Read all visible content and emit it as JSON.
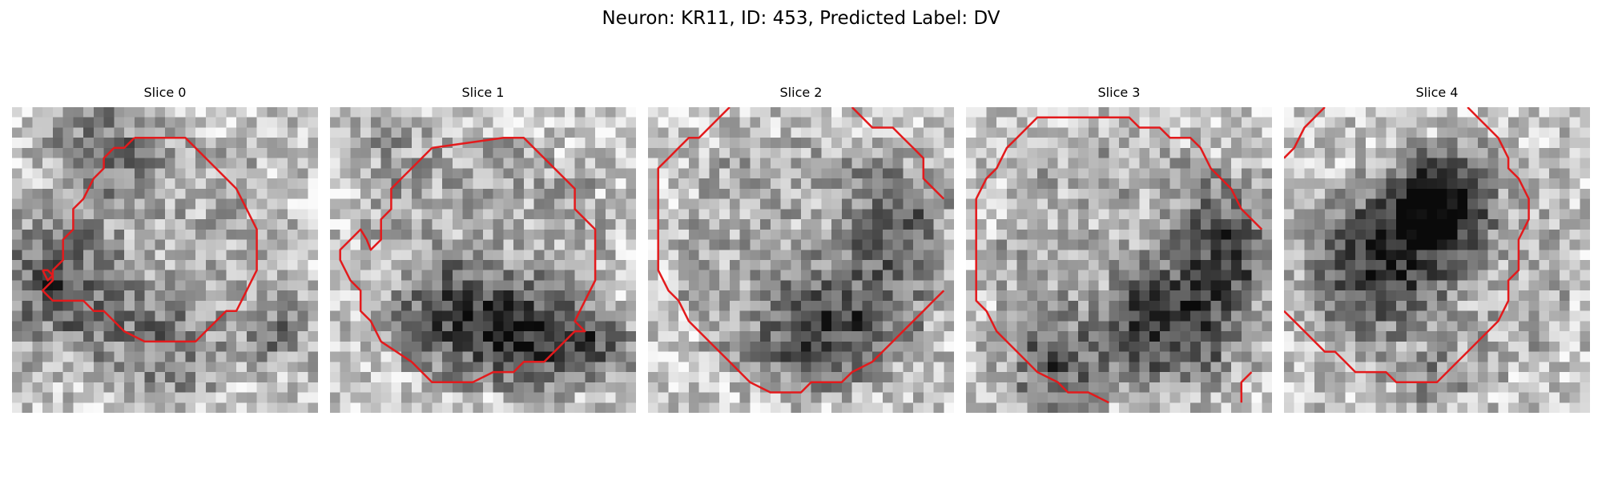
{
  "figure": {
    "title": "Neuron: KR11, ID: 453, Predicted Label: DV",
    "contour_color": "#e31a1c",
    "image_colormap": "grayscale"
  },
  "slices": [
    {
      "title": "Slice 0"
    },
    {
      "title": "Slice 1"
    },
    {
      "title": "Slice 2"
    },
    {
      "title": "Slice 3"
    },
    {
      "title": "Slice 4"
    }
  ]
}
